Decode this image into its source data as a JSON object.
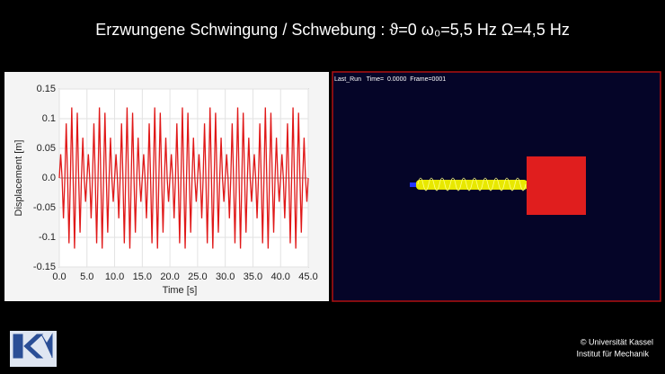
{
  "title": "Erzwungene Schwingung / Schwebung :  ϑ=0  ω₀=5,5 Hz  Ω=4,5 Hz",
  "chart_data": {
    "type": "line",
    "xlabel": "Time [s]",
    "ylabel": "Displacement [m]",
    "grid": true,
    "xlim": [
      0,
      45
    ],
    "ylim": [
      -0.15,
      0.15
    ],
    "xticks": [
      {
        "value": 0,
        "label": "0.0"
      },
      {
        "value": 5,
        "label": "5.0"
      },
      {
        "value": 10,
        "label": "10.0"
      },
      {
        "value": 15,
        "label": "15.0"
      },
      {
        "value": 20,
        "label": "20.0"
      },
      {
        "value": 25,
        "label": "25.0"
      },
      {
        "value": 30,
        "label": "30.0"
      },
      {
        "value": 35,
        "label": "35.0"
      },
      {
        "value": 40,
        "label": "40.0"
      },
      {
        "value": 45,
        "label": "45.0"
      }
    ],
    "yticks": [
      -0.15,
      -0.1,
      -0.05,
      {
        "value": 0,
        "label": "0.0"
      },
      0.05,
      0.1,
      0.15
    ],
    "series": [
      {
        "color": "#e01818",
        "x": [
          0,
          0.25,
          0.5,
          0.75,
          1,
          1.25,
          1.5,
          1.75,
          2,
          2.25,
          2.5,
          2.75,
          3,
          3.25,
          3.5,
          3.75,
          4,
          4.25,
          4.5,
          4.75,
          5,
          5.25,
          5.5,
          5.75,
          6,
          6.25,
          6.5,
          6.75,
          7,
          7.25,
          7.5,
          7.75,
          8,
          8.25,
          8.5,
          8.75,
          9,
          9.25,
          9.5,
          9.75,
          10,
          10.25,
          10.5,
          10.75,
          11,
          11.25,
          11.5,
          11.75,
          12,
          12.25,
          12.5,
          12.75,
          13,
          13.25,
          13.5,
          13.75,
          14,
          14.25,
          14.5,
          14.75,
          15,
          15.25,
          15.5,
          15.75,
          16,
          16.25,
          16.5,
          16.75,
          17,
          17.25,
          17.5,
          17.75,
          18,
          18.25,
          18.5,
          18.75,
          19,
          19.25,
          19.5,
          19.75,
          20,
          20.25,
          20.5,
          20.75,
          21,
          21.25,
          21.5,
          21.75,
          22,
          22.25,
          22.5,
          22.75,
          23,
          23.25,
          23.5,
          23.75,
          24,
          24.25,
          24.5,
          24.75,
          25,
          25.25,
          25.5,
          25.75,
          26,
          26.25,
          26.5,
          26.75,
          27,
          27.25,
          27.5,
          27.75,
          28,
          28.25,
          28.5,
          28.75,
          29,
          29.25,
          29.5,
          29.75,
          30,
          30.25,
          30.5,
          30.75,
          31,
          31.25,
          31.5,
          31.75,
          32,
          32.25,
          32.5,
          32.75,
          33,
          33.25,
          33.5,
          33.75,
          34,
          34.25,
          34.5,
          34.75,
          35,
          35.25,
          35.5,
          35.75,
          36,
          36.25,
          36.5,
          36.75,
          37,
          37.25,
          37.5,
          37.75,
          38,
          38.25,
          38.5,
          38.75,
          39,
          39.25,
          39.5,
          39.75,
          40,
          40.25,
          40.5,
          40.75,
          41,
          41.25,
          41.5,
          41.75,
          42,
          42.25,
          42.5,
          42.75,
          43,
          43.25,
          43.5,
          43.75,
          44,
          44.25,
          44.5,
          44.75,
          45
        ],
        "values": [
          0,
          0.04,
          0,
          -0.068,
          0,
          0.092,
          0,
          -0.11,
          0,
          0.119,
          0,
          -0.119,
          0,
          0.11,
          0,
          -0.092,
          0,
          0.068,
          0,
          -0.04,
          0,
          0.04,
          0,
          -0.068,
          0,
          0.092,
          0,
          -0.11,
          0,
          0.119,
          0,
          -0.119,
          0,
          0.11,
          0,
          -0.092,
          0,
          0.068,
          0,
          -0.04,
          0,
          0.04,
          0,
          -0.068,
          0,
          0.092,
          0,
          -0.11,
          0,
          0.119,
          0,
          -0.119,
          0,
          0.11,
          0,
          -0.092,
          0,
          0.068,
          0,
          -0.04,
          0,
          0.04,
          0,
          -0.068,
          0,
          0.092,
          0,
          -0.11,
          0,
          0.119,
          0,
          -0.119,
          0,
          0.11,
          0,
          -0.092,
          0,
          0.068,
          0,
          -0.04,
          0,
          0.04,
          0,
          -0.068,
          0,
          0.092,
          0,
          -0.11,
          0,
          0.119,
          0,
          -0.119,
          0,
          0.11,
          0,
          -0.092,
          0,
          0.068,
          0,
          -0.04,
          0,
          0.04,
          0,
          -0.068,
          0,
          0.092,
          0,
          -0.11,
          0,
          0.119,
          0,
          -0.119,
          0,
          0.11,
          0,
          -0.092,
          0,
          0.068,
          0,
          -0.04,
          0,
          0.04,
          0,
          -0.068,
          0,
          0.092,
          0,
          -0.11,
          0,
          0.119,
          0,
          -0.119,
          0,
          0.11,
          0,
          -0.092,
          0,
          0.068,
          0,
          -0.04,
          0,
          0.04,
          0,
          -0.068,
          0,
          0.092,
          0,
          -0.11,
          0,
          0.119,
          0,
          -0.119,
          0,
          0.11,
          0,
          -0.092,
          0,
          0.068,
          0,
          -0.04,
          0,
          0.04,
          0,
          -0.068,
          0,
          0.092,
          0,
          -0.11,
          0,
          0.119,
          0,
          -0.119,
          0,
          0.11,
          0,
          -0.092,
          0,
          0.068,
          0,
          -0.04,
          0
        ]
      }
    ]
  },
  "simulation": {
    "status": "Last_Run   Time=  0.0000  Frame=0001"
  },
  "footer": {
    "line1": "© Universität Kassel",
    "line2": "Institut für Mechanik"
  }
}
